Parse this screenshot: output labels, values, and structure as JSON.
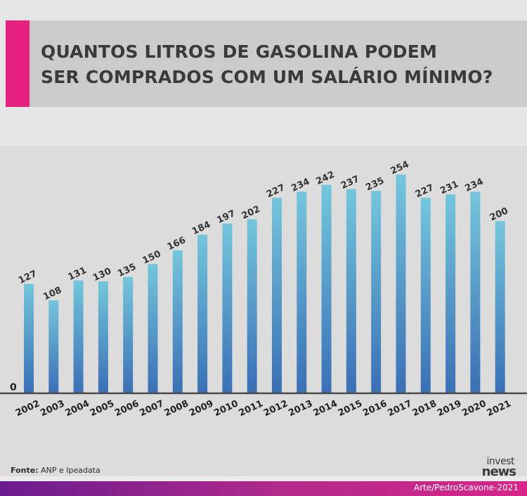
{
  "header": {
    "title_line1": "QUANTOS LITROS DE GASOLINA PODEM",
    "title_line2": "SER COMPRADOS COM UM SALÁRIO MÍNIMO?"
  },
  "colors": {
    "accent": "#e6217f",
    "bar_top": "#74c6dc",
    "bar_bottom": "#3a6fb5",
    "footer_start": "#6a1c8e",
    "footer_end": "#d8258a"
  },
  "chart_data": {
    "type": "bar",
    "title": "QUANTOS LITROS DE GASOLINA PODEM SER COMPRADOS COM UM SALÁRIO MÍNIMO?",
    "categories": [
      "2002",
      "2003",
      "2004",
      "2005",
      "2006",
      "2007",
      "2008",
      "2009",
      "2010",
      "2011",
      "2012",
      "2013",
      "2014",
      "2015",
      "2016",
      "2017",
      "2018",
      "2019",
      "2020",
      "2021"
    ],
    "values": [
      127,
      108,
      131,
      130,
      135,
      150,
      166,
      184,
      197,
      202,
      227,
      234,
      242,
      237,
      235,
      254,
      227,
      231,
      234,
      200
    ],
    "y_zero_label": "0",
    "ylim": [
      0,
      254
    ],
    "xlabel": "",
    "ylabel": "",
    "grid": false
  },
  "footer": {
    "source_label": "Fonte:",
    "source_text": "ANP e Ipeadata",
    "logo_top": "invest",
    "logo_bottom": "news",
    "credit": "Arte/PedroScavone-2021"
  }
}
